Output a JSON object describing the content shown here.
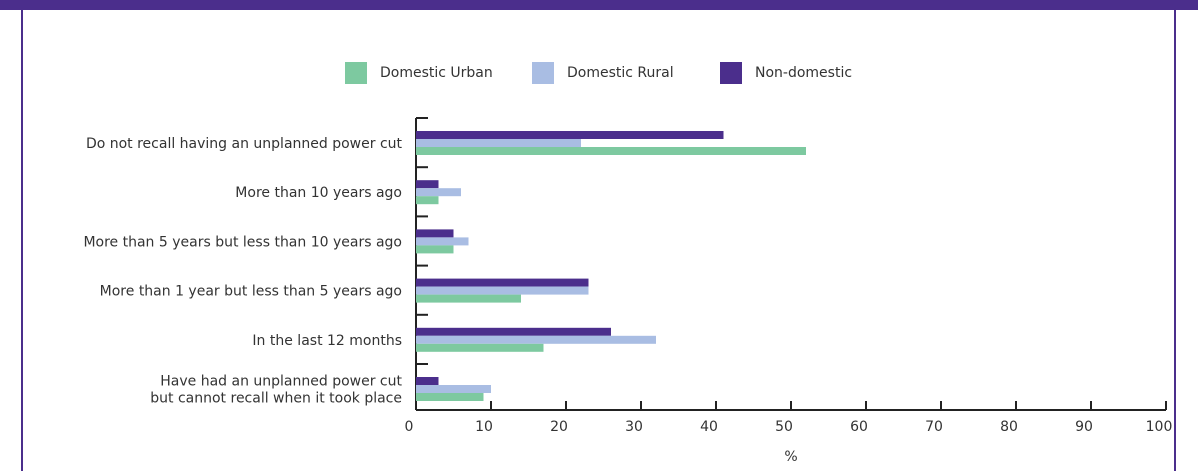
{
  "chart_data": {
    "type": "hbar",
    "categories": [
      "Do not recall having an unplanned power cut",
      "More than 10 years ago",
      "More than 5 years but less than 10 years ago",
      "More than 1 year but less than 5 years ago",
      "In the last 12 months",
      "Have had an unplanned power cut\nbut cannot recall when it took place"
    ],
    "series": [
      {
        "name": "Non-domestic",
        "color": "#4b2e8c",
        "values": [
          41,
          3,
          5,
          23,
          26,
          3
        ]
      },
      {
        "name": "Domestic Rural",
        "color": "#a9bde3",
        "values": [
          22,
          6,
          7,
          23,
          32,
          10
        ]
      },
      {
        "name": "Domestic Urban",
        "color": "#7dc9a0",
        "values": [
          52,
          3,
          5,
          14,
          17,
          9
        ]
      }
    ],
    "legend_order": [
      2,
      1,
      0
    ],
    "xlabel": "%",
    "xlim": [
      0,
      100
    ],
    "xticks": [
      0,
      10,
      20,
      30,
      40,
      50,
      60,
      70,
      80,
      90,
      100
    ]
  }
}
